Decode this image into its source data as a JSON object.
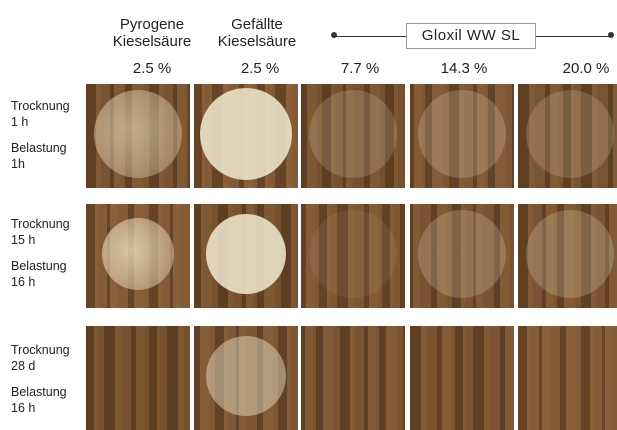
{
  "headers": {
    "pyrogene_line1": "Pyrogene",
    "pyrogene_line2": "Kieselsäure",
    "gefaellte_line1": "Gefällte",
    "gefaellte_line2": "Kieselsäure",
    "gloxil": "Gloxil WW SL"
  },
  "columns": [
    "2.5 %",
    "2.5 %",
    "7.7 %",
    "14.3 %",
    "20.0 %"
  ],
  "rows": [
    {
      "trocknung_label": "Trocknung",
      "trocknung_value": "1 h",
      "belastung_label": "Belastung",
      "belastung_value": "1h"
    },
    {
      "trocknung_label": "Trocknung",
      "trocknung_value": "15 h",
      "belastung_label": "Belastung",
      "belastung_value": "16 h"
    },
    {
      "trocknung_label": "Trocknung",
      "trocknung_value": "28 d",
      "belastung_label": "Belastung",
      "belastung_value": "16 h"
    }
  ],
  "colors": {
    "wood_base": "#7a5230",
    "spot": "#f2ead2"
  }
}
